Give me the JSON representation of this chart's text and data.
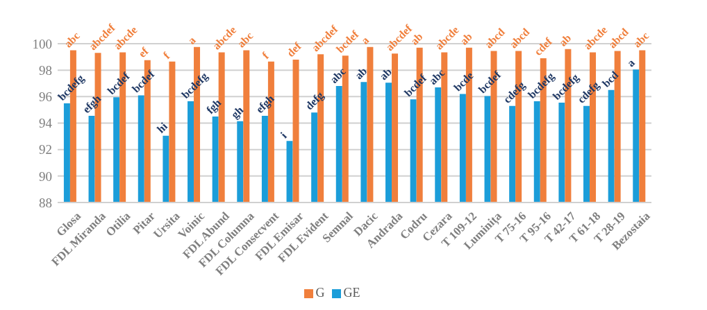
{
  "chart_data": {
    "type": "bar",
    "categories": [
      "Glosa",
      "FDL Miranda",
      "Otilia",
      "Pitar",
      "Ursita",
      "Voinic",
      "FDL Abund",
      "FDL Columna",
      "FDL Consecvent",
      "FDL Emisar",
      "FDL Evident",
      "Semnal",
      "Dacic",
      "Andrada",
      "Codru",
      "Cezara",
      "T 109-12",
      "Luminița",
      "T 75-16",
      "T 95-16",
      "T 42-17",
      "T 61-18",
      "T 28-19",
      "Bezostaia"
    ],
    "series": [
      {
        "name": "GE",
        "color": "#1b9dd9",
        "values": [
          95.5,
          94.55,
          95.95,
          96.1,
          93.05,
          95.65,
          94.5,
          94.15,
          94.55,
          92.65,
          94.8,
          96.8,
          97.1,
          97.05,
          95.8,
          96.7,
          96.2,
          96.05,
          95.3,
          95.65,
          95.55,
          95.3,
          96.5,
          98.05
        ],
        "value_labels": [
          "bcdefg",
          "efgh",
          "bcdef",
          "bcdef",
          "hi",
          "bcdefg",
          "fgh",
          "gh",
          "efgh",
          "i",
          "defg",
          "abc",
          "ab",
          "ab",
          "bcdef",
          "abc",
          "bcde",
          "bcdef",
          "cdefg",
          "bcdefg",
          "bcdefg",
          "cdefg",
          "bcd",
          "a"
        ]
      },
      {
        "name": "G",
        "color": "#f07f3c",
        "values": [
          99.5,
          99.3,
          99.35,
          98.75,
          98.65,
          99.75,
          99.35,
          99.5,
          98.65,
          98.8,
          99.2,
          99.1,
          99.75,
          99.25,
          99.7,
          99.35,
          99.7,
          99.45,
          99.45,
          98.9,
          99.6,
          99.35,
          99.45,
          99.5
        ],
        "value_labels": [
          "abc",
          "abcdef",
          "abcde",
          "ef",
          "f",
          "a",
          "abcde",
          "abc",
          "f",
          "def",
          "abcdef",
          "bcdef",
          "a",
          "abcdef",
          "ab",
          "abcde",
          "ab",
          "abcd",
          "abcd",
          "cdef",
          "ab",
          "abcde",
          "abcd",
          "abc"
        ]
      }
    ],
    "ylim": [
      88,
      100
    ],
    "yticks": [
      88,
      90,
      92,
      94,
      96,
      98,
      100
    ],
    "grid": "y",
    "legend": "bottom"
  }
}
